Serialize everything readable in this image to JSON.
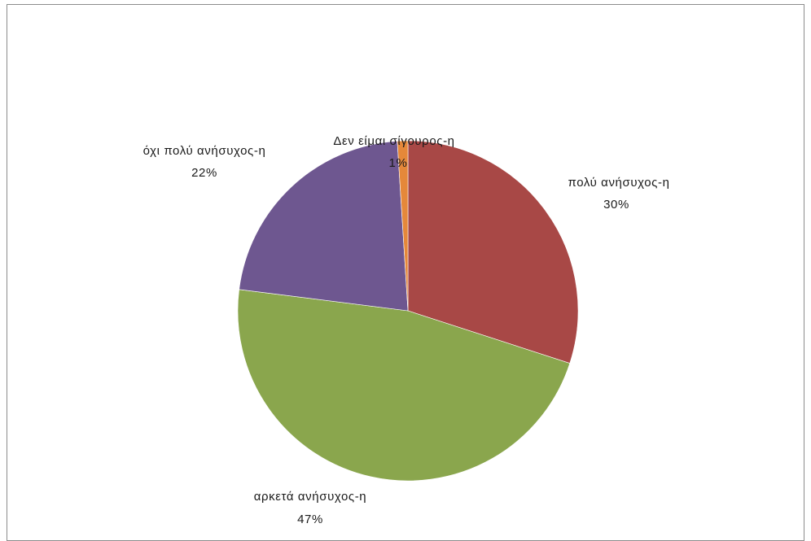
{
  "chart_data": {
    "type": "pie",
    "title": "",
    "categories": [
      "πολύ ανήσυχος-η",
      "αρκετά ανήσυχος-η",
      "όχι πολύ ανήσυχος-η",
      "Δεν είμαι σίγουρος-η"
    ],
    "values": [
      30,
      47,
      22,
      1
    ],
    "percent_labels": [
      "30%",
      "47%",
      "22%",
      "1%"
    ],
    "colors": [
      "#a84846",
      "#8aa64d",
      "#6e5790",
      "#e5883a"
    ],
    "start": "12 o'clock",
    "direction": "clockwise",
    "legend": "none",
    "labels": "outside slices, category name above percentage"
  }
}
